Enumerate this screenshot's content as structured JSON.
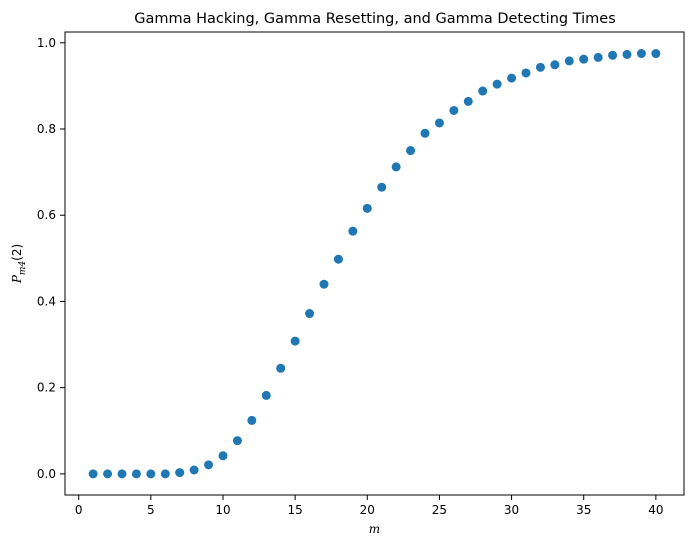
{
  "chart_data": {
    "type": "scatter",
    "title": "Gamma Hacking, Gamma Resetting, and Gamma Detecting Times",
    "xlabel": "m",
    "ylabel": {
      "base": "P",
      "sub": "m4",
      "arg": "(2)"
    },
    "xlim": [
      -0.95,
      41.95
    ],
    "ylim": [
      -0.049,
      1.025
    ],
    "xticks": [
      0,
      5,
      10,
      15,
      20,
      25,
      30,
      35,
      40
    ],
    "yticks": [
      0.0,
      0.2,
      0.4,
      0.6,
      0.8,
      1.0
    ],
    "ytick_labels": [
      "0.0",
      "0.2",
      "0.4",
      "0.6",
      "0.8",
      "1.0"
    ],
    "grid": false,
    "marker_color": "#1f77b4",
    "series": [
      {
        "x": [
          1,
          2,
          3,
          4,
          5,
          6,
          7,
          8,
          9,
          10,
          11,
          12,
          13,
          14,
          15,
          16,
          17,
          18,
          19,
          20,
          21,
          22,
          23,
          24,
          25,
          26,
          27,
          28,
          29,
          30,
          31,
          32,
          33,
          34,
          35,
          36,
          37,
          38,
          39,
          40
        ],
        "y": [
          0.0,
          0.0,
          0.0,
          0.0,
          0.0,
          0.0,
          0.003,
          0.009,
          0.021,
          0.042,
          0.077,
          0.124,
          0.182,
          0.245,
          0.308,
          0.372,
          0.44,
          0.498,
          0.563,
          0.616,
          0.665,
          0.712,
          0.75,
          0.79,
          0.814,
          0.843,
          0.864,
          0.888,
          0.904,
          0.918,
          0.93,
          0.943,
          0.949,
          0.958,
          0.962,
          0.966,
          0.971,
          0.973,
          0.975,
          0.975
        ]
      }
    ]
  }
}
